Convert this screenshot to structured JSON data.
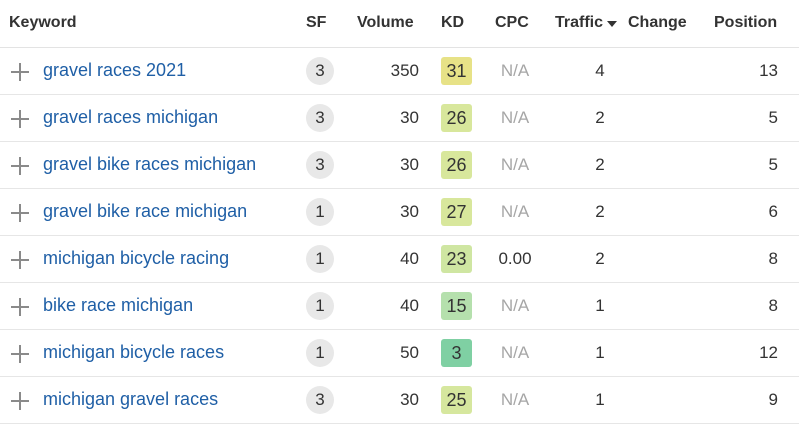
{
  "header": {
    "keyword": "Keyword",
    "sf": "SF",
    "volume": "Volume",
    "kd": "KD",
    "cpc": "CPC",
    "traffic": "Traffic",
    "change": "Change",
    "position": "Position",
    "sort_icon": "caret-down-icon"
  },
  "kd_colors": {
    "31": "#e7e287",
    "26": "#d8e79c",
    "27": "#d8e79c",
    "23": "#cfe6a2",
    "25": "#d6e79e",
    "15": "#b5e0ad",
    "3": "#7fd0a3"
  },
  "cpc_colors": {
    "na": "#a6a6a6",
    "value": "#333333"
  },
  "rows": [
    {
      "keyword": "gravel races 2021",
      "sf": "3",
      "volume": "350",
      "kd": "31",
      "cpc": "N/A",
      "traffic": "4",
      "position": "13"
    },
    {
      "keyword": "gravel races michigan",
      "sf": "3",
      "volume": "30",
      "kd": "26",
      "cpc": "N/A",
      "traffic": "2",
      "position": "5"
    },
    {
      "keyword": "gravel bike races michigan",
      "sf": "3",
      "volume": "30",
      "kd": "26",
      "cpc": "N/A",
      "traffic": "2",
      "position": "5"
    },
    {
      "keyword": "gravel bike race michigan",
      "sf": "1",
      "volume": "30",
      "kd": "27",
      "cpc": "N/A",
      "traffic": "2",
      "position": "6"
    },
    {
      "keyword": "michigan bicycle racing",
      "sf": "1",
      "volume": "40",
      "kd": "23",
      "cpc": "0.00",
      "traffic": "2",
      "position": "8"
    },
    {
      "keyword": "bike race michigan",
      "sf": "1",
      "volume": "40",
      "kd": "15",
      "cpc": "N/A",
      "traffic": "1",
      "position": "8"
    },
    {
      "keyword": "michigan bicycle races",
      "sf": "1",
      "volume": "50",
      "kd": "3",
      "cpc": "N/A",
      "traffic": "1",
      "position": "12"
    },
    {
      "keyword": "michigan gravel races",
      "sf": "3",
      "volume": "30",
      "kd": "25",
      "cpc": "N/A",
      "traffic": "1",
      "position": "9"
    }
  ]
}
